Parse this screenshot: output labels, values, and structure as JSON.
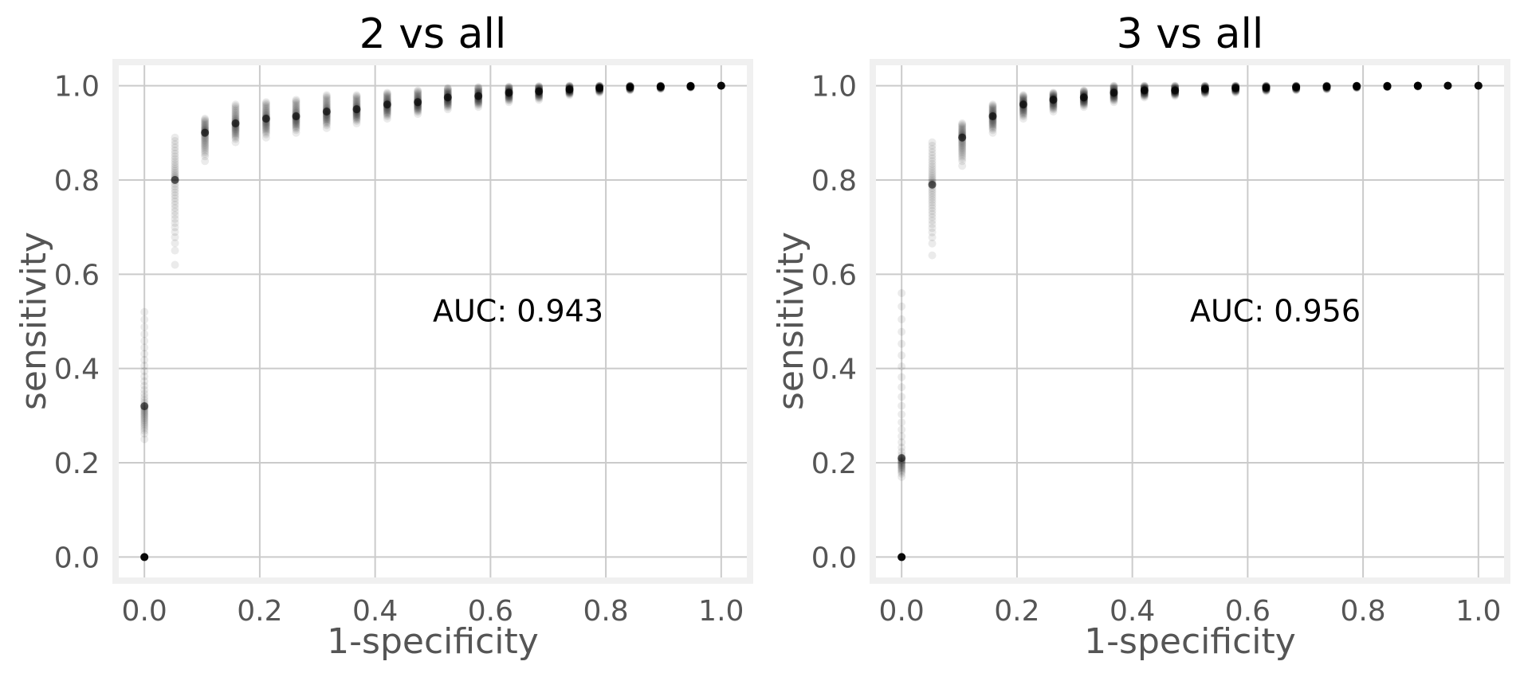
{
  "colors": {
    "background": "#ffffff",
    "plot_background": "#ffffff",
    "plot_border": "#f0f0f0",
    "grid": "#cbcbcb",
    "marker": "#000000",
    "axis_text": "#555555",
    "title_text": "#000000"
  },
  "chart_data": [
    {
      "type": "scatter",
      "title": "2 vs all",
      "xlabel": "1-specificity",
      "ylabel": "sensitivity",
      "xlim": [
        -0.05,
        1.05
      ],
      "ylim": [
        -0.05,
        1.05
      ],
      "x_ticks": [
        0.0,
        0.2,
        0.4,
        0.6,
        0.8,
        1.0
      ],
      "y_ticks": [
        0.0,
        0.2,
        0.4,
        0.6,
        0.8,
        1.0
      ],
      "x_tick_labels": [
        "0.0",
        "0.2",
        "0.4",
        "0.6",
        "0.8",
        "1.0"
      ],
      "y_tick_labels": [
        "0.0",
        "0.2",
        "0.4",
        "0.6",
        "0.8",
        "1.0"
      ],
      "grid": true,
      "annotation": {
        "text": "AUC: 0.943",
        "x": 0.5,
        "y": 0.5
      },
      "series": [
        {
          "x": [
            0.0,
            0.0,
            0.053,
            0.105,
            0.158,
            0.211,
            0.263,
            0.316,
            0.368,
            0.421,
            0.474,
            0.526,
            0.579,
            0.632,
            0.684,
            0.737,
            0.789,
            0.842,
            0.895,
            0.947,
            1.0
          ],
          "y_center": [
            0.0,
            0.32,
            0.8,
            0.9,
            0.92,
            0.93,
            0.935,
            0.945,
            0.95,
            0.96,
            0.965,
            0.975,
            0.978,
            0.985,
            0.988,
            0.992,
            0.995,
            0.997,
            0.998,
            0.999,
            1.0
          ],
          "y_min": [
            0.0,
            0.25,
            0.62,
            0.84,
            0.88,
            0.89,
            0.9,
            0.91,
            0.92,
            0.93,
            0.94,
            0.95,
            0.955,
            0.965,
            0.97,
            0.98,
            0.985,
            0.99,
            0.993,
            0.996,
            1.0
          ],
          "y_max": [
            0.0,
            0.52,
            0.89,
            0.93,
            0.96,
            0.965,
            0.97,
            0.98,
            0.98,
            0.985,
            0.99,
            0.995,
            0.997,
            0.998,
            0.999,
            1.0,
            1.0,
            1.0,
            1.0,
            1.0,
            1.0
          ]
        }
      ]
    },
    {
      "type": "scatter",
      "title": "3 vs all",
      "xlabel": "1-specificity",
      "ylabel": "sensitivity",
      "xlim": [
        -0.05,
        1.05
      ],
      "ylim": [
        -0.05,
        1.05
      ],
      "x_ticks": [
        0.0,
        0.2,
        0.4,
        0.6,
        0.8,
        1.0
      ],
      "y_ticks": [
        0.0,
        0.2,
        0.4,
        0.6,
        0.8,
        1.0
      ],
      "x_tick_labels": [
        "0.0",
        "0.2",
        "0.4",
        "0.6",
        "0.8",
        "1.0"
      ],
      "y_tick_labels": [
        "0.0",
        "0.2",
        "0.4",
        "0.6",
        "0.8",
        "1.0"
      ],
      "grid": true,
      "annotation": {
        "text": "AUC: 0.956",
        "x": 0.5,
        "y": 0.5
      },
      "series": [
        {
          "x": [
            0.0,
            0.0,
            0.053,
            0.105,
            0.158,
            0.211,
            0.263,
            0.316,
            0.368,
            0.421,
            0.474,
            0.526,
            0.579,
            0.632,
            0.684,
            0.737,
            0.789,
            0.842,
            0.895,
            0.947,
            1.0
          ],
          "y_center": [
            0.0,
            0.21,
            0.79,
            0.89,
            0.935,
            0.96,
            0.97,
            0.975,
            0.985,
            0.99,
            0.99,
            0.993,
            0.995,
            0.996,
            0.997,
            0.998,
            0.999,
            0.999,
            1.0,
            1.0,
            1.0
          ],
          "y_min": [
            0.0,
            0.17,
            0.64,
            0.83,
            0.9,
            0.93,
            0.945,
            0.955,
            0.965,
            0.975,
            0.978,
            0.982,
            0.985,
            0.988,
            0.99,
            0.992,
            0.995,
            0.997,
            0.998,
            1.0,
            1.0
          ],
          "y_max": [
            0.0,
            0.56,
            0.88,
            0.92,
            0.96,
            0.98,
            0.985,
            0.99,
            1.0,
            1.0,
            1.0,
            1.0,
            1.0,
            1.0,
            1.0,
            1.0,
            1.0,
            1.0,
            1.0,
            1.0,
            1.0
          ]
        }
      ]
    }
  ]
}
